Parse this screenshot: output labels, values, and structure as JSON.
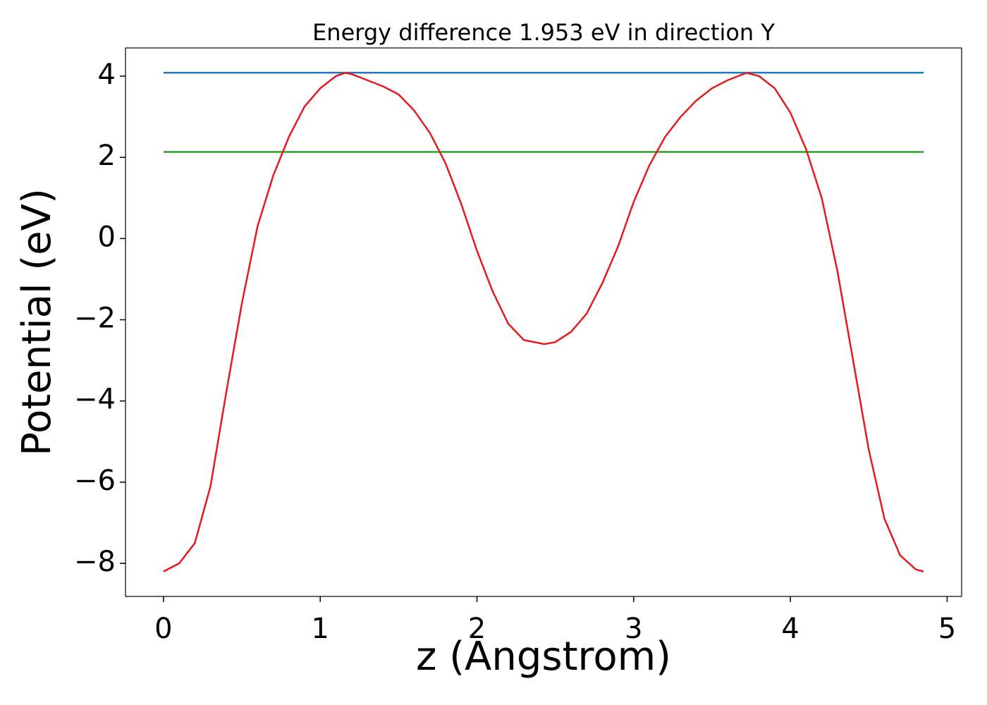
{
  "chart_data": {
    "type": "line",
    "title": "Energy difference 1.953 eV in direction Y",
    "x_label": "z (Angstrom)",
    "y_label": "Potential (eV)",
    "xlim": [
      -0.2425,
      5.0925
    ],
    "ylim": [
      -8.814,
      4.694
    ],
    "xticks": [
      0,
      1,
      2,
      3,
      4,
      5
    ],
    "yticks": [
      {
        "value": -8,
        "label": "−8"
      },
      {
        "value": -6,
        "label": "−6"
      },
      {
        "value": -4,
        "label": "−4"
      },
      {
        "value": -2,
        "label": "−2"
      },
      0,
      2,
      4
    ],
    "series": [
      {
        "color": "#1f77b4",
        "x": [
          0,
          4.85
        ],
        "values": [
          4.085,
          4.085
        ]
      },
      {
        "color": "#2ca02c",
        "x": [
          0,
          4.85
        ],
        "values": [
          2.132,
          2.132
        ]
      },
      {
        "color": "#e41a1c",
        "x": [
          0,
          0.1,
          0.2,
          0.3,
          0.4,
          0.5,
          0.6,
          0.7,
          0.8,
          0.9,
          1.0,
          1.1,
          1.16,
          1.2,
          1.3,
          1.4,
          1.5,
          1.6,
          1.7,
          1.8,
          1.9,
          2.0,
          2.1,
          2.2,
          2.3,
          2.43,
          2.5,
          2.6,
          2.7,
          2.8,
          2.9,
          3.0,
          3.1,
          3.2,
          3.3,
          3.4,
          3.5,
          3.6,
          3.72,
          3.8,
          3.9,
          4.0,
          4.1,
          4.2,
          4.3,
          4.4,
          4.5,
          4.6,
          4.7,
          4.8,
          4.85
        ],
        "values": [
          -8.2,
          -8.0,
          -7.5,
          -6.1,
          -3.8,
          -1.6,
          0.3,
          1.55,
          2.5,
          3.25,
          3.7,
          4.0,
          4.08,
          4.05,
          3.9,
          3.75,
          3.55,
          3.15,
          2.6,
          1.85,
          0.85,
          -0.3,
          -1.3,
          -2.1,
          -2.5,
          -2.6,
          -2.55,
          -2.3,
          -1.85,
          -1.1,
          -0.2,
          0.9,
          1.8,
          2.5,
          3.0,
          3.4,
          3.7,
          3.9,
          4.08,
          4.0,
          3.7,
          3.1,
          2.2,
          1.0,
          -0.8,
          -3.0,
          -5.2,
          -6.9,
          -7.8,
          -8.15,
          -8.2
        ]
      }
    ]
  }
}
